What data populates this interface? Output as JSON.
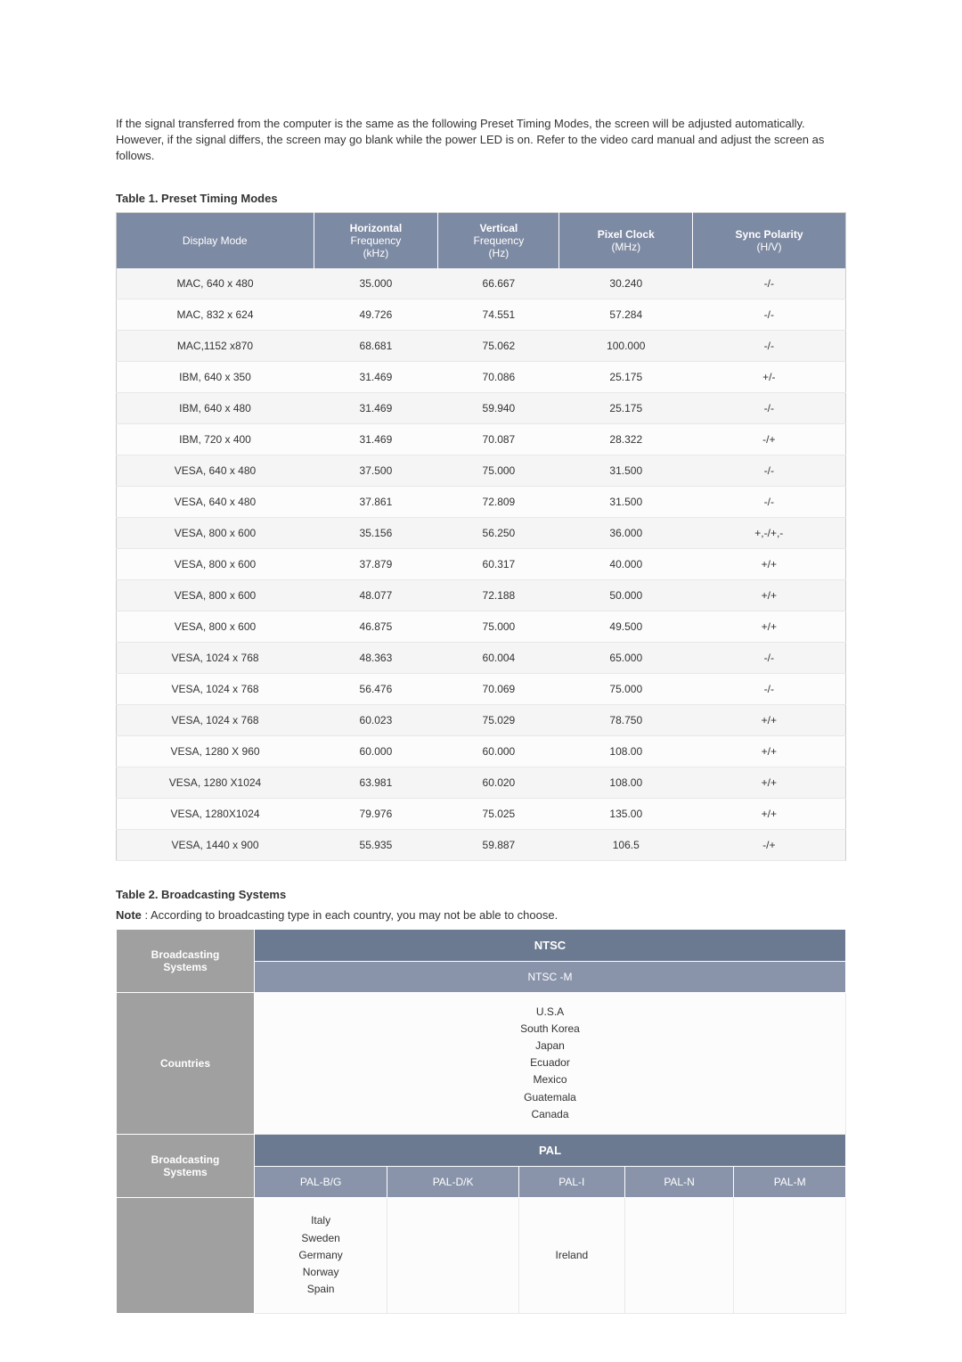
{
  "intro": "If the signal transferred from the computer is the same as the following Preset Timing Modes, the screen will be adjusted automatically. However, if the signal differs, the screen may go blank while the power LED is on. Refer to the video card manual and adjust the screen as follows.",
  "table1": {
    "title": "Table 1. Preset Timing Modes",
    "headers": {
      "col1": "Display Mode",
      "col2_main": "Horizontal",
      "col2_sub": "Frequency",
      "col2_unit": "(kHz)",
      "col3_main": "Vertical",
      "col3_sub": "Frequency",
      "col3_unit": "(Hz)",
      "col4_main": "Pixel Clock",
      "col4_unit": "(MHz)",
      "col5_main": "Sync Polarity",
      "col5_unit": "(H/V)"
    },
    "rows": [
      {
        "mode": "MAC, 640 x 480",
        "hfreq": "35.000",
        "vfreq": "66.667",
        "clock": "30.240",
        "sync": "-/-"
      },
      {
        "mode": "MAC, 832 x 624",
        "hfreq": "49.726",
        "vfreq": "74.551",
        "clock": "57.284",
        "sync": "-/-"
      },
      {
        "mode": "MAC,1152 x870",
        "hfreq": "68.681",
        "vfreq": "75.062",
        "clock": "100.000",
        "sync": "-/-"
      },
      {
        "mode": "IBM, 640 x 350",
        "hfreq": "31.469",
        "vfreq": "70.086",
        "clock": "25.175",
        "sync": "+/-"
      },
      {
        "mode": "IBM, 640 x 480",
        "hfreq": "31.469",
        "vfreq": "59.940",
        "clock": "25.175",
        "sync": "-/-"
      },
      {
        "mode": "IBM, 720 x 400",
        "hfreq": "31.469",
        "vfreq": "70.087",
        "clock": "28.322",
        "sync": "-/+"
      },
      {
        "mode": "VESA, 640 x 480",
        "hfreq": "37.500",
        "vfreq": "75.000",
        "clock": "31.500",
        "sync": "-/-"
      },
      {
        "mode": "VESA, 640 x 480",
        "hfreq": "37.861",
        "vfreq": "72.809",
        "clock": "31.500",
        "sync": "-/-"
      },
      {
        "mode": "VESA, 800 x 600",
        "hfreq": "35.156",
        "vfreq": "56.250",
        "clock": "36.000",
        "sync": "+,-/+,-"
      },
      {
        "mode": "VESA, 800 x 600",
        "hfreq": "37.879",
        "vfreq": "60.317",
        "clock": "40.000",
        "sync": "+/+"
      },
      {
        "mode": "VESA, 800 x 600",
        "hfreq": "48.077",
        "vfreq": "72.188",
        "clock": "50.000",
        "sync": "+/+"
      },
      {
        "mode": "VESA, 800 x 600",
        "hfreq": "46.875",
        "vfreq": "75.000",
        "clock": "49.500",
        "sync": "+/+"
      },
      {
        "mode": "VESA, 1024 x 768",
        "hfreq": "48.363",
        "vfreq": "60.004",
        "clock": "65.000",
        "sync": "-/-"
      },
      {
        "mode": "VESA, 1024 x 768",
        "hfreq": "56.476",
        "vfreq": "70.069",
        "clock": "75.000",
        "sync": "-/-"
      },
      {
        "mode": "VESA, 1024 x 768",
        "hfreq": "60.023",
        "vfreq": "75.029",
        "clock": "78.750",
        "sync": "+/+"
      },
      {
        "mode": "VESA, 1280 X 960",
        "hfreq": "60.000",
        "vfreq": "60.000",
        "clock": "108.00",
        "sync": "+/+"
      },
      {
        "mode": "VESA, 1280 X1024",
        "hfreq": "63.981",
        "vfreq": "60.020",
        "clock": "108.00",
        "sync": "+/+"
      },
      {
        "mode": "VESA, 1280X1024",
        "hfreq": "79.976",
        "vfreq": "75.025",
        "clock": "135.00",
        "sync": "+/+"
      },
      {
        "mode": "VESA, 1440 x 900",
        "hfreq": "55.935",
        "vfreq": "59.887",
        "clock": "106.5",
        "sync": "-/+"
      }
    ]
  },
  "table2": {
    "title": "Table 2. Broadcasting Systems",
    "note_label": "Note",
    "note_text": " : According to broadcasting type in each country, you may not be able to choose.",
    "left_headers": {
      "broadcasting": "Broadcasting",
      "systems": "Systems",
      "countries": "Countries"
    },
    "ntsc": {
      "main": "NTSC",
      "sub": "NTSC -M",
      "countries": "U.S.A\nSouth Korea\nJapan\nEcuador\nMexico\nGuatemala\nCanada"
    },
    "pal": {
      "main": "PAL",
      "subs": [
        "PAL-B/G",
        "PAL-D/K",
        "PAL-I",
        "PAL-N",
        "PAL-M"
      ],
      "countries": [
        "Italy\nSweden\nGermany\nNorway\nSpain",
        "",
        "Ireland",
        "",
        ""
      ]
    }
  }
}
